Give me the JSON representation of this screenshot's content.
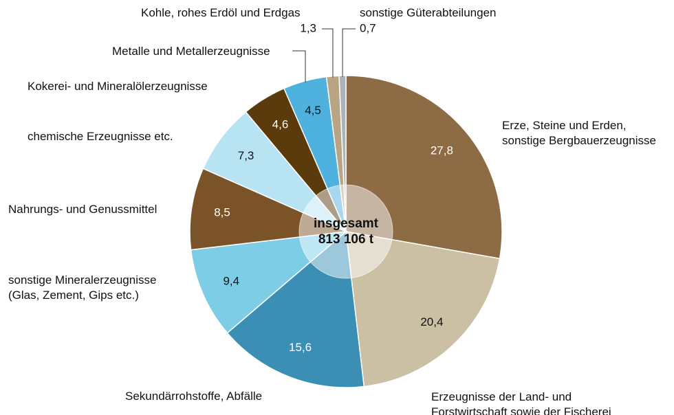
{
  "chart_data": {
    "type": "pie",
    "categories": [
      "Erze, Steine und Erden,\nsonstige Bergbauerzeugnisse",
      "Erzeugnisse der Land- und\nForstwirtschaft sowie der Fischerei",
      "Sekundärrohstoffe, Abfälle",
      "sonstige Mineralerzeugnisse\n(Glas, Zement, Gips etc.)",
      "Nahrungs- und Genussmittel",
      "chemische Erzeugnisse etc.",
      "Kokerei- und Mineralölerzeugnisse",
      "Metalle und Metallerzeugnisse",
      "Kohle, rohes Erdöl und Erdgas",
      "sonstige Güterabteilungen"
    ],
    "values": [
      27.8,
      20.4,
      15.6,
      9.4,
      8.5,
      7.3,
      4.6,
      4.5,
      1.3,
      0.7
    ],
    "value_labels": [
      "27,8",
      "20,4",
      "15,6",
      "9,4",
      "8,5",
      "7,3",
      "4,6",
      "4,5",
      "1,3",
      "0,7"
    ],
    "colors": [
      "#8c6b45",
      "#cbbfa4",
      "#3b8fb4",
      "#7ecde7",
      "#7a5328",
      "#b8e3f3",
      "#5b3a0c",
      "#4fb1dd",
      "#b9a583",
      "#a9b5bb"
    ],
    "annotations": [
      "insgesamt",
      "813 106 t"
    ]
  }
}
